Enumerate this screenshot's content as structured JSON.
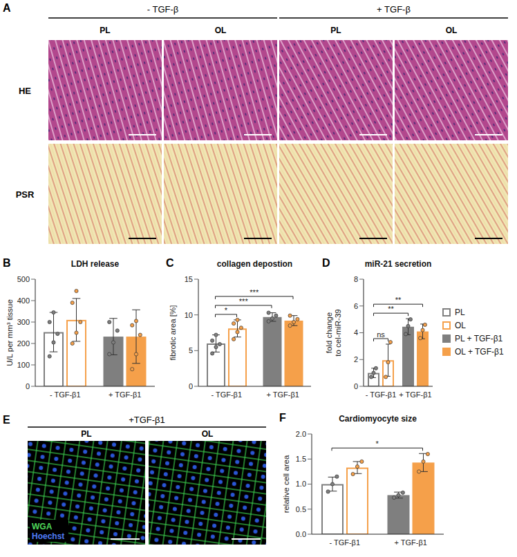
{
  "figure": {
    "panel_A": {
      "panel": "A",
      "groups": [
        "- TGF-β",
        "+ TGF-β"
      ],
      "columns": [
        "PL",
        "OL",
        "PL",
        "OL"
      ],
      "rows": [
        "HE",
        "PSR"
      ]
    },
    "panel_E": {
      "panel": "E",
      "group": "+TGF-β1",
      "columns": [
        "PL",
        "OL"
      ],
      "stains": [
        "WGA",
        "Hoechst"
      ]
    }
  },
  "chart_data": [
    {
      "panel": "B",
      "type": "bar",
      "title": "LDH release",
      "y_label": "U/L per mm³ tissue",
      "categories": [
        "- TGF-β1",
        "+ TGF-β1"
      ],
      "ylim": [
        0,
        500
      ],
      "yticks": [
        0,
        100,
        200,
        300,
        400,
        500
      ],
      "series": [
        {
          "name": "PL",
          "color": "#7f7f7f",
          "marker": "open",
          "values": [
            253,
            null
          ],
          "errors": [
            92,
            null
          ],
          "points": [
            [
              140,
              205,
              245,
              300,
              345
            ],
            null
          ]
        },
        {
          "name": "OL",
          "color": "#f5a04a",
          "marker": "open",
          "values": [
            310,
            null
          ],
          "errors": [
            100,
            null
          ],
          "points": [
            [
              200,
              250,
              300,
              390,
              445
            ],
            null
          ]
        },
        {
          "name": "PL + TGF-β1",
          "color": "#7f7f7f",
          "marker": "filled",
          "values": [
            null,
            232
          ],
          "errors": [
            null,
            85
          ],
          "points": [
            null,
            [
              150,
              205,
              260,
              300
            ]
          ]
        },
        {
          "name": "OL + TGF-β1",
          "color": "#f5a04a",
          "marker": "filled",
          "values": [
            null,
            232
          ],
          "errors": [
            null,
            125
          ],
          "points": [
            null,
            [
              80,
              150,
              240,
              285,
              305
            ]
          ]
        }
      ],
      "annotations": []
    },
    {
      "panel": "C",
      "type": "bar",
      "title": "collagen depostion",
      "y_label": "fibrotic area [%]",
      "categories": [
        "- TGF-β1",
        "+ TGF-β1"
      ],
      "ylim": [
        0,
        15
      ],
      "yticks": [
        0,
        5,
        10,
        15
      ],
      "series": [
        {
          "name": "PL",
          "color": "#7f7f7f",
          "marker": "open",
          "values": [
            6.0,
            null
          ],
          "errors": [
            1.2,
            null
          ],
          "points": [
            [
              4.6,
              5.5,
              5.9,
              6.4,
              7.2
            ],
            null
          ]
        },
        {
          "name": "OL",
          "color": "#f5a04a",
          "marker": "open",
          "values": [
            8.1,
            null
          ],
          "errors": [
            1.2,
            null
          ],
          "points": [
            [
              6.6,
              7.6,
              8.2,
              8.8,
              9.3
            ],
            null
          ]
        },
        {
          "name": "PL + TGF-β1",
          "color": "#7f7f7f",
          "marker": "filled",
          "values": [
            null,
            9.7
          ],
          "errors": [
            null,
            0.6
          ],
          "points": [
            null,
            [
              9.1,
              9.5,
              9.9,
              10.3
            ]
          ]
        },
        {
          "name": "OL + TGF-β1",
          "color": "#f5a04a",
          "marker": "filled",
          "values": [
            null,
            9.2
          ],
          "errors": [
            null,
            0.7
          ],
          "points": [
            null,
            [
              8.5,
              9.0,
              9.4,
              9.9
            ]
          ]
        }
      ],
      "annotations": [
        {
          "from": "PL",
          "to": "OL",
          "label": "*"
        },
        {
          "from": "PL",
          "to": "PL + TGF-β1",
          "label": "***"
        },
        {
          "from": "PL",
          "to": "OL + TGF-β1",
          "label": "***"
        }
      ]
    },
    {
      "panel": "D",
      "type": "bar",
      "title": "miR-21 secretion",
      "y_label": "fold change to cel-miR-39",
      "legend": "right",
      "categories": [
        "- TGF-β1",
        "+ TGF-β1"
      ],
      "ylim": [
        0,
        8
      ],
      "yticks": [
        0,
        2,
        4,
        6,
        8
      ],
      "series": [
        {
          "name": "PL",
          "color": "#7f7f7f",
          "marker": "open",
          "values": [
            1.0,
            null
          ],
          "errors": [
            0.35,
            null
          ],
          "points": [
            [
              0.7,
              1.0,
              1.35
            ],
            null
          ]
        },
        {
          "name": "OL",
          "color": "#f5a04a",
          "marker": "open",
          "values": [
            1.95,
            null
          ],
          "errors": [
            1.2,
            null
          ],
          "points": [
            [
              0.7,
              1.8,
              3.3
            ],
            null
          ]
        },
        {
          "name": "PL + TGF-β1",
          "color": "#7f7f7f",
          "marker": "filled",
          "values": [
            null,
            4.45
          ],
          "errors": [
            null,
            0.6
          ],
          "points": [
            null,
            [
              3.9,
              4.5,
              5.0
            ]
          ]
        },
        {
          "name": "OL + TGF-β1",
          "color": "#f5a04a",
          "marker": "filled",
          "values": [
            null,
            4.1
          ],
          "errors": [
            null,
            0.55
          ],
          "points": [
            null,
            [
              3.6,
              4.2,
              4.6
            ]
          ]
        }
      ],
      "annotations": [
        {
          "from": "PL",
          "to": "OL",
          "label": "ns"
        },
        {
          "from": "PL",
          "to": "PL + TGF-β1",
          "label": "**"
        },
        {
          "from": "PL",
          "to": "OL + TGF-β1",
          "label": "**"
        }
      ]
    },
    {
      "panel": "F",
      "type": "bar",
      "title": "Cardiomyocyte size",
      "y_label": "relative cell area",
      "categories": [
        "- TGF-β1",
        "+ TGF-β1"
      ],
      "ylim": [
        0,
        2
      ],
      "yticks": [
        {
          "value": 0,
          "label": "0.0"
        },
        {
          "value": 0.5,
          "label": "0.5"
        },
        {
          "value": 1,
          "label": "1.0"
        },
        {
          "value": 1.5,
          "label": "1.5"
        },
        {
          "value": 2,
          "label": "2.0"
        }
      ],
      "series": [
        {
          "name": "PL",
          "color": "#7f7f7f",
          "marker": "open",
          "values": [
            1.0,
            null
          ],
          "errors": [
            0.14,
            null
          ],
          "points": [
            [
              0.85,
              1.0,
              1.15
            ],
            null
          ]
        },
        {
          "name": "OL",
          "color": "#f5a04a",
          "marker": "open",
          "values": [
            1.33,
            null
          ],
          "errors": [
            0.12,
            null
          ],
          "points": [
            [
              1.2,
              1.35,
              1.45
            ],
            null
          ]
        },
        {
          "name": "PL + TGF-β1",
          "color": "#7f7f7f",
          "marker": "filled",
          "values": [
            null,
            0.78
          ],
          "errors": [
            null,
            0.06
          ],
          "points": [
            null,
            [
              0.73,
              0.78,
              0.83
            ]
          ]
        },
        {
          "name": "OL + TGF-β1",
          "color": "#f5a04a",
          "marker": "filled",
          "values": [
            null,
            1.43
          ],
          "errors": [
            null,
            0.18
          ],
          "points": [
            null,
            [
              1.25,
              1.45,
              1.6
            ]
          ]
        }
      ],
      "annotations": [
        {
          "from": "PL",
          "to": "OL + TGF-β1",
          "label": "*"
        }
      ]
    }
  ]
}
